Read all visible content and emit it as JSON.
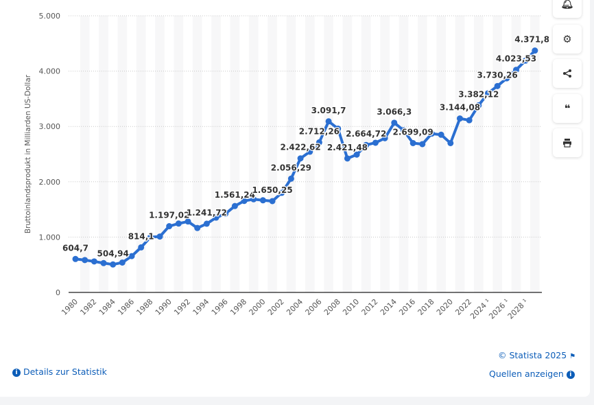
{
  "chart_data": {
    "type": "line",
    "title": "",
    "xlabel": "",
    "ylabel": "Bruttoinlandsprodukt in Milliarden US-Dollar",
    "ylim": [
      0,
      5000
    ],
    "yticks": [
      0,
      1000,
      2000,
      3000,
      4000,
      5000
    ],
    "ytick_labels": [
      "0",
      "1.000",
      "2.000",
      "3.000",
      "4.000",
      "5.000"
    ],
    "grid": true,
    "x": [
      1980,
      1981,
      1982,
      1983,
      1984,
      1985,
      1986,
      1987,
      1988,
      1989,
      1990,
      1991,
      1992,
      1993,
      1994,
      1995,
      1996,
      1997,
      1998,
      1999,
      2000,
      2001,
      2002,
      2003,
      2004,
      2005,
      2006,
      2007,
      2008,
      2009,
      2010,
      2011,
      2012,
      2013,
      2014,
      2015,
      2016,
      2017,
      2018,
      2019,
      2020,
      2021,
      2022,
      2023,
      2024,
      2025,
      2026,
      2027,
      2028,
      2029
    ],
    "xtick_labels": [
      "1980",
      "1982",
      "1984",
      "1986",
      "1988",
      "1990",
      "1992",
      "1994",
      "1996",
      "1998",
      "2000",
      "2002",
      "2004",
      "2006",
      "2008",
      "2010",
      "2012",
      "2014",
      "2016",
      "2018",
      "2020",
      "2022",
      "2024 ¹",
      "2026 ¹",
      "2028 ¹"
    ],
    "series": [
      {
        "name": "Bruttoinlandsprodukt",
        "color": "#2b6fd1",
        "values": [
          604.7,
          585,
          560,
          530,
          504.94,
          540,
          656,
          814.1,
          1000,
          1010,
          1197.02,
          1245,
          1282,
          1164,
          1241.72,
          1352,
          1422,
          1561.24,
          1654,
          1684,
          1665,
          1650.25,
          1800,
          2056.29,
          2422.62,
          2543,
          2712.26,
          3091.7,
          2960,
          2421.48,
          2491,
          2664.72,
          2705,
          2787,
          3066.3,
          2930,
          2699.09,
          2680,
          2870,
          2850,
          2699,
          3144.08,
          3112,
          3382.12,
          3600,
          3730.26,
          3870,
          4023.53,
          4190,
          4371.81
        ]
      }
    ],
    "data_labels": [
      {
        "year": 1980,
        "text": "604,7"
      },
      {
        "year": 1984,
        "text": "504,94"
      },
      {
        "year": 1987,
        "text": "814,1"
      },
      {
        "year": 1990,
        "text": "1.197,02"
      },
      {
        "year": 1994,
        "text": "1.241,72"
      },
      {
        "year": 1997,
        "text": "1.561,24"
      },
      {
        "year": 2001,
        "text": "1.650,25"
      },
      {
        "year": 2003,
        "text": "2.056,29"
      },
      {
        "year": 2004,
        "text": "2.422,62"
      },
      {
        "year": 2006,
        "text": "2.712,26"
      },
      {
        "year": 2007,
        "text": "3.091,7"
      },
      {
        "year": 2009,
        "text": "2.421,48"
      },
      {
        "year": 2011,
        "text": "2.664,72"
      },
      {
        "year": 2014,
        "text": "3.066,3"
      },
      {
        "year": 2016,
        "text": "2.699,09"
      },
      {
        "year": 2021,
        "text": "3.144,08"
      },
      {
        "year": 2023,
        "text": "3.382,12"
      },
      {
        "year": 2025,
        "text": "3.730,26"
      },
      {
        "year": 2027,
        "text": "4.023,53"
      },
      {
        "year": 2029,
        "text": "4.371,81"
      }
    ]
  },
  "sidebar": {
    "icons": [
      "bell-icon",
      "gear-icon",
      "share-icon",
      "quote-icon",
      "print-icon"
    ]
  },
  "footer": {
    "copyright": "© Statista 2025",
    "details": "Details zur Statistik",
    "sources": "Quellen anzeigen"
  }
}
